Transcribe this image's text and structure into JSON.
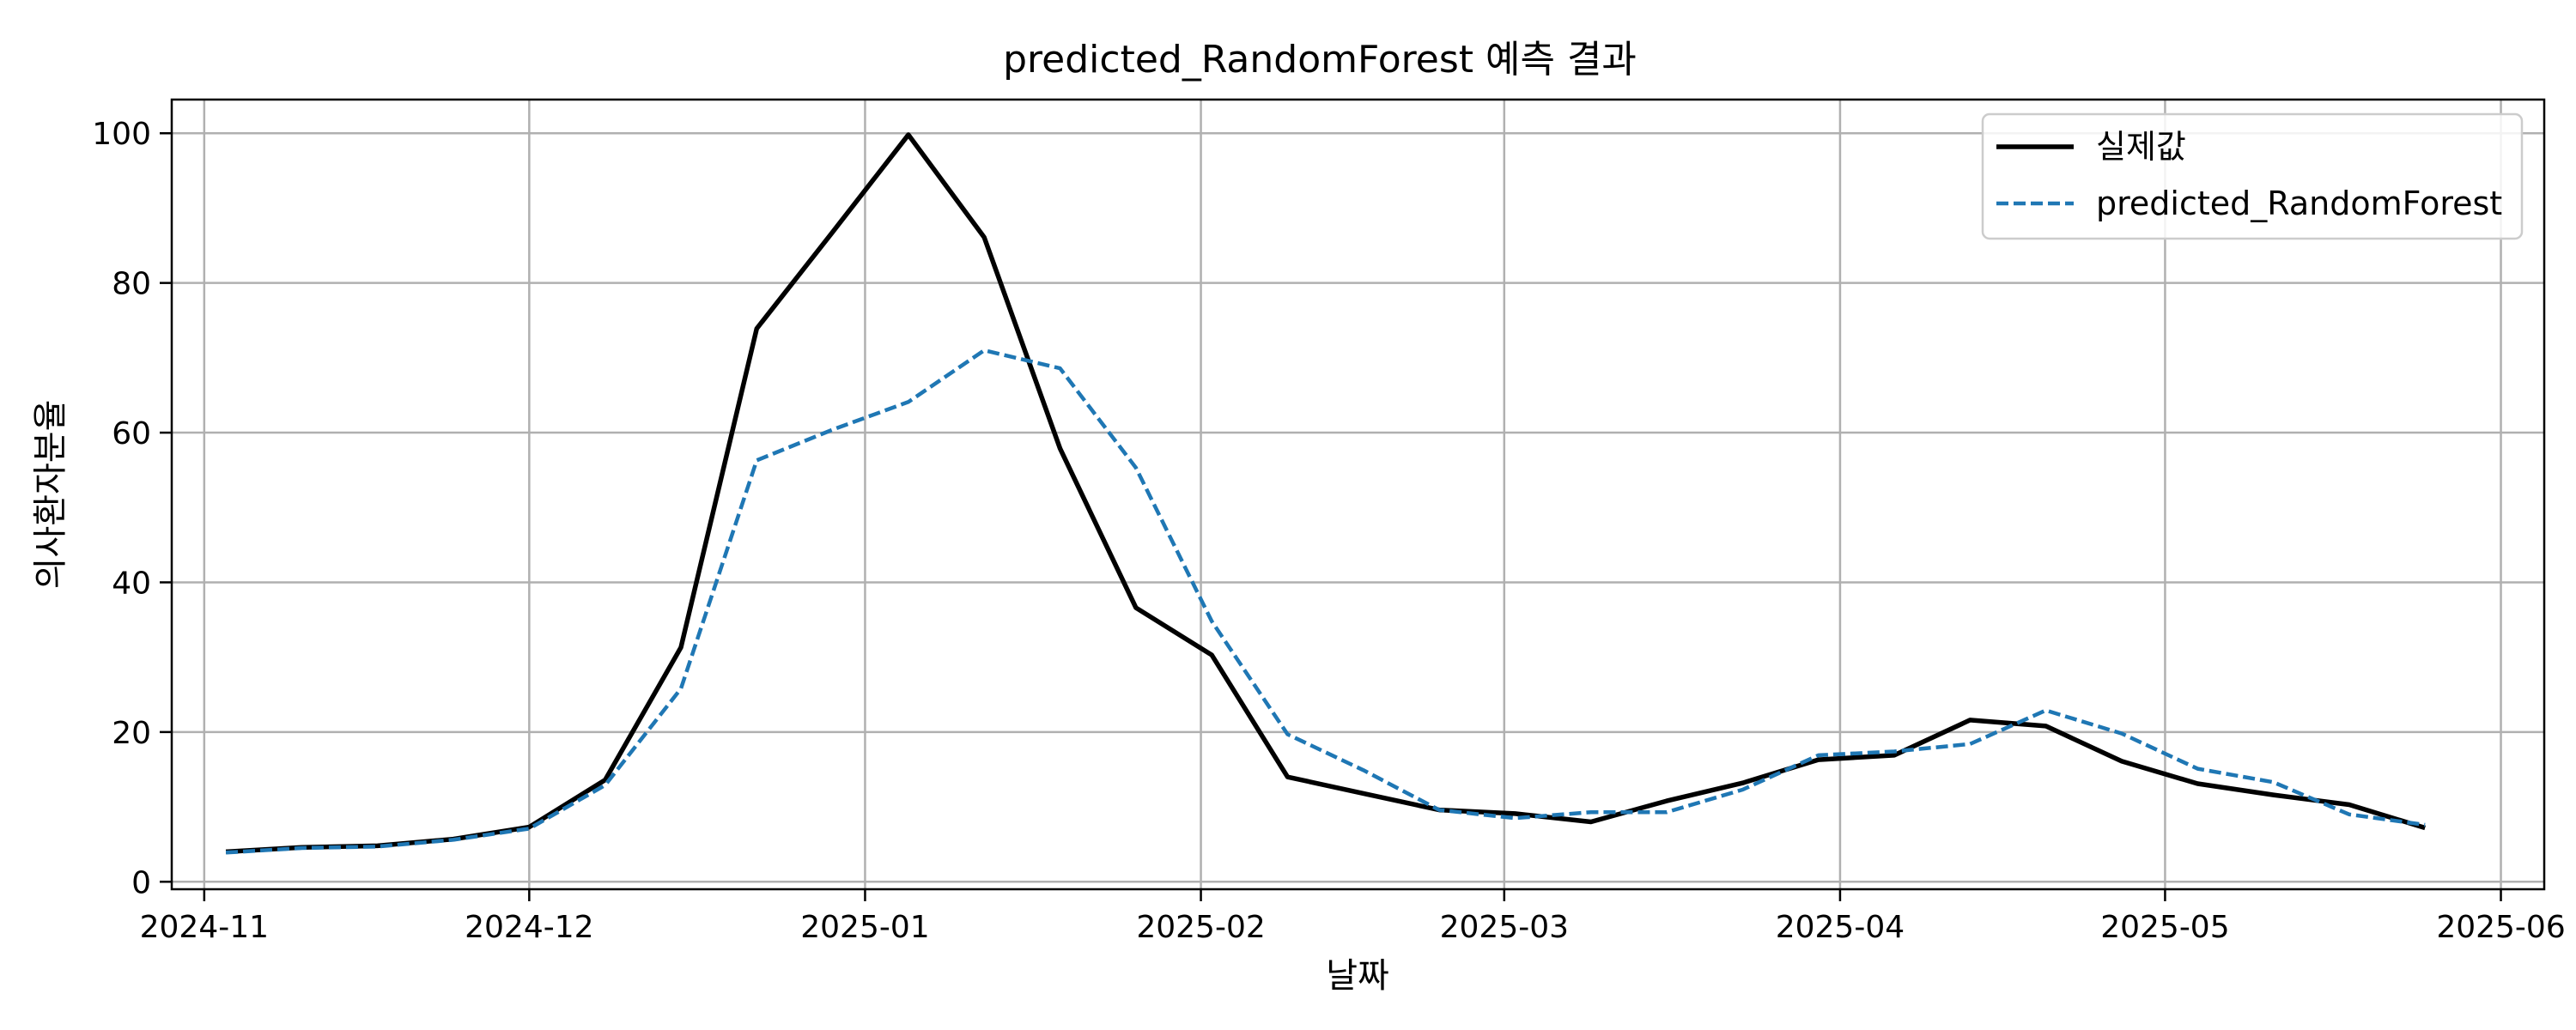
{
  "chart_data": {
    "type": "line",
    "title": "predicted_RandomForest 예측 결과",
    "xlabel": "날짜",
    "ylabel": "의사환자분율",
    "ylim": [
      -1,
      104.5
    ],
    "xlim": [
      "2024-10-29",
      "2025-06-05"
    ],
    "grid": true,
    "legend_position": "top-right",
    "x_ticks": [
      "2024-11-01",
      "2024-12-01",
      "2025-01-01",
      "2025-02-01",
      "2025-03-01",
      "2025-04-01",
      "2025-05-01",
      "2025-06-01"
    ],
    "x_tick_labels": [
      "2024-11",
      "2024-12",
      "2025-01",
      "2025-02",
      "2025-03",
      "2025-04",
      "2025-05",
      "2025-06"
    ],
    "y_ticks": [
      0,
      20,
      40,
      60,
      80,
      100
    ],
    "y_tick_labels": [
      "0",
      "20",
      "40",
      "60",
      "80",
      "100"
    ],
    "x": [
      "2024-11-03",
      "2024-11-10",
      "2024-11-17",
      "2024-11-24",
      "2024-12-01",
      "2024-12-08",
      "2024-12-15",
      "2024-12-22",
      "2024-12-29",
      "2025-01-05",
      "2025-01-12",
      "2025-01-19",
      "2025-01-26",
      "2025-02-02",
      "2025-02-09",
      "2025-02-16",
      "2025-02-23",
      "2025-03-02",
      "2025-03-09",
      "2025-03-16",
      "2025-03-23",
      "2025-03-30",
      "2025-04-06",
      "2025-04-13",
      "2025-04-20",
      "2025-04-27",
      "2025-05-04",
      "2025-05-11",
      "2025-05-18",
      "2025-05-25"
    ],
    "series": [
      {
        "name": "실제값",
        "color": "#000000",
        "dash": "solid",
        "values": [
          4.0,
          4.6,
          4.8,
          5.7,
          7.3,
          13.6,
          31.3,
          73.9,
          86.8,
          99.8,
          86.1,
          57.9,
          36.6,
          30.3,
          14.0,
          11.8,
          9.6,
          9.1,
          8.0,
          10.8,
          13.2,
          16.3,
          16.9,
          21.6,
          20.8,
          16.1,
          13.1,
          11.6,
          10.3,
          7.2
        ]
      },
      {
        "name": "predicted_RandomForest",
        "color": "#1f77b4",
        "dash": "dashed",
        "values": [
          3.9,
          4.5,
          4.7,
          5.6,
          7.1,
          12.9,
          25.8,
          56.3,
          60.4,
          64.1,
          71.0,
          68.6,
          55.3,
          34.8,
          19.7,
          14.9,
          9.6,
          8.5,
          9.3,
          9.3,
          12.3,
          16.9,
          17.4,
          18.4,
          22.9,
          19.8,
          15.1,
          13.3,
          9.0,
          7.6
        ]
      }
    ]
  }
}
